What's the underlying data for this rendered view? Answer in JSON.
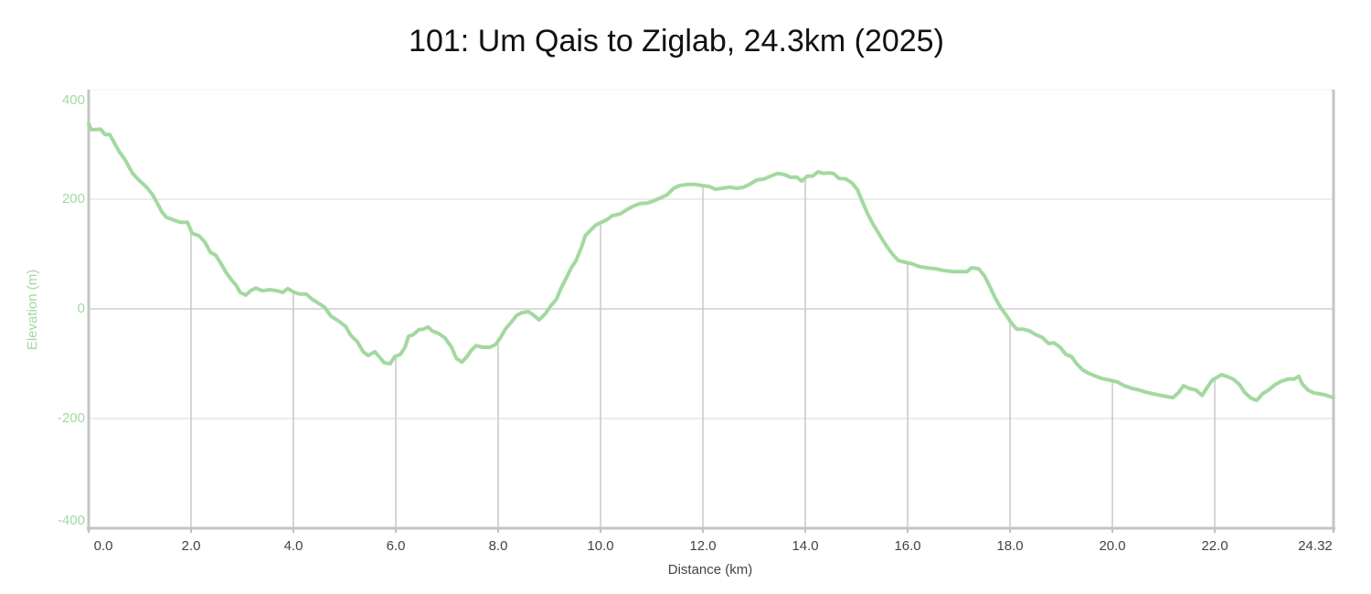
{
  "chart_data": {
    "type": "line",
    "title": "101: Um Qais to Ziglab, 24.3km (2025)",
    "x_label": "Distance (km)",
    "y_label": "Elevation (m)",
    "xlim": [
      0,
      24.32
    ],
    "ylim": [
      -400,
      400
    ],
    "xticks": [
      {
        "value": 0,
        "label": "0.0"
      },
      {
        "value": 2,
        "label": "2.0"
      },
      {
        "value": 4,
        "label": "4.0"
      },
      {
        "value": 6,
        "label": "6.0"
      },
      {
        "value": 8,
        "label": "8.0"
      },
      {
        "value": 10,
        "label": "10.0"
      },
      {
        "value": 12,
        "label": "12.0"
      },
      {
        "value": 14,
        "label": "14.0"
      },
      {
        "value": 16,
        "label": "16.0"
      },
      {
        "value": 18,
        "label": "18.0"
      },
      {
        "value": 20,
        "label": "20.0"
      },
      {
        "value": 22,
        "label": "22.0"
      },
      24.32
    ],
    "yticks": [
      400,
      200,
      0,
      -200,
      -400
    ],
    "grid": true,
    "color": "#a3d9a0",
    "x": [
      0,
      0.05,
      0.16,
      0.23,
      0.32,
      0.41,
      0.5,
      0.59,
      0.71,
      0.86,
      0.98,
      1.13,
      1.25,
      1.34,
      1.43,
      1.52,
      1.66,
      1.79,
      1.93,
      2.02,
      2.16,
      2.27,
      2.38,
      2.48,
      2.57,
      2.68,
      2.79,
      2.88,
      2.96,
      3.07,
      3.16,
      3.27,
      3.39,
      3.54,
      3.68,
      3.79,
      3.89,
      4.02,
      4.13,
      4.25,
      4.36,
      4.46,
      4.61,
      4.73,
      4.88,
      5.02,
      5.12,
      5.25,
      5.36,
      5.46,
      5.59,
      5.7,
      5.77,
      5.89,
      5.98,
      6.09,
      6.18,
      6.25,
      6.34,
      6.45,
      6.54,
      6.63,
      6.71,
      6.84,
      6.96,
      7.09,
      7.18,
      7.29,
      7.39,
      7.48,
      7.57,
      7.7,
      7.84,
      7.95,
      8.04,
      8.14,
      8.25,
      8.36,
      8.46,
      8.59,
      8.7,
      8.8,
      8.93,
      9.04,
      9.14,
      9.23,
      9.34,
      9.43,
      9.52,
      9.63,
      9.7,
      9.8,
      9.91,
      10.02,
      10.13,
      10.23,
      10.38,
      10.5,
      10.63,
      10.77,
      10.91,
      11.04,
      11.16,
      11.3,
      11.43,
      11.55,
      11.7,
      11.84,
      11.98,
      12.13,
      12.25,
      12.38,
      12.52,
      12.66,
      12.8,
      12.93,
      13.05,
      13.2,
      13.32,
      13.46,
      13.59,
      13.71,
      13.84,
      13.93,
      14.04,
      14.14,
      14.25,
      14.36,
      14.45,
      14.55,
      14.66,
      14.79,
      14.91,
      15.02,
      15.11,
      15.21,
      15.32,
      15.45,
      15.57,
      15.7,
      15.82,
      15.95,
      16.09,
      16.23,
      16.38,
      16.55,
      16.71,
      16.88,
      17.04,
      17.16,
      17.25,
      17.39,
      17.5,
      17.61,
      17.71,
      17.82,
      17.93,
      18.02,
      18.13,
      18.25,
      18.38,
      18.5,
      18.63,
      18.75,
      18.86,
      18.98,
      19.09,
      19.2,
      19.3,
      19.43,
      19.55,
      19.68,
      19.8,
      19.95,
      20.09,
      20.23,
      20.38,
      20.52,
      20.66,
      20.8,
      20.95,
      21.07,
      21.18,
      21.29,
      21.39,
      21.5,
      21.63,
      21.75,
      21.84,
      21.95,
      22.04,
      22.13,
      22.23,
      22.36,
      22.48,
      22.59,
      22.71,
      22.82,
      22.93,
      23.05,
      23.18,
      23.3,
      23.43,
      23.55,
      23.64,
      23.71,
      23.82,
      23.93,
      24.05,
      24.16,
      24.25,
      24.32
    ],
    "values": [
      338,
      327,
      327,
      328,
      318,
      318,
      303,
      288,
      272,
      247,
      235,
      222,
      208,
      193,
      177,
      167,
      162,
      158,
      158,
      138,
      133,
      122,
      103,
      98,
      85,
      67,
      53,
      43,
      30,
      25,
      33,
      38,
      33,
      35,
      33,
      30,
      37,
      30,
      27,
      27,
      18,
      12,
      3,
      -13,
      -22,
      -32,
      -48,
      -60,
      -78,
      -85,
      -78,
      -90,
      -98,
      -100,
      -87,
      -83,
      -70,
      -50,
      -47,
      -38,
      -37,
      -33,
      -40,
      -45,
      -53,
      -70,
      -90,
      -97,
      -87,
      -75,
      -67,
      -70,
      -70,
      -65,
      -53,
      -37,
      -25,
      -12,
      -7,
      -5,
      -12,
      -20,
      -8,
      7,
      18,
      38,
      58,
      75,
      88,
      113,
      133,
      143,
      153,
      158,
      163,
      170,
      173,
      180,
      187,
      192,
      193,
      197,
      202,
      208,
      220,
      225,
      227,
      227,
      225,
      223,
      218,
      220,
      222,
      220,
      222,
      228,
      235,
      237,
      242,
      247,
      245,
      240,
      240,
      233,
      242,
      242,
      250,
      247,
      248,
      247,
      238,
      237,
      230,
      217,
      197,
      175,
      155,
      135,
      117,
      100,
      88,
      85,
      82,
      77,
      75,
      73,
      70,
      68,
      68,
      68,
      75,
      73,
      60,
      40,
      20,
      2,
      -12,
      -25,
      -37,
      -37,
      -40,
      -47,
      -52,
      -63,
      -62,
      -70,
      -83,
      -87,
      -100,
      -112,
      -118,
      -123,
      -127,
      -130,
      -133,
      -140,
      -145,
      -148,
      -152,
      -155,
      -158,
      -160,
      -162,
      -153,
      -140,
      -145,
      -148,
      -158,
      -145,
      -130,
      -125,
      -120,
      -123,
      -128,
      -138,
      -153,
      -163,
      -167,
      -155,
      -148,
      -138,
      -132,
      -128,
      -128,
      -123,
      -137,
      -148,
      -153,
      -155,
      -157,
      -160,
      -162
    ]
  }
}
